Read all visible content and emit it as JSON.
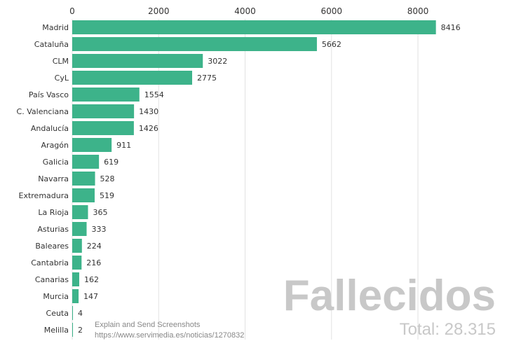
{
  "chart_data": {
    "type": "bar",
    "orientation": "horizontal",
    "title": "Fallecidos",
    "subtitle": "Total: 28.315",
    "categories": [
      "Madrid",
      "Cataluña",
      "CLM",
      "CyL",
      "País Vasco",
      "C. Valenciana",
      "Andalucía",
      "Aragón",
      "Galicia",
      "Navarra",
      "Extremadura",
      "La Rioja",
      "Asturias",
      "Baleares",
      "Cantabria",
      "Canarias",
      "Murcia",
      "Ceuta",
      "Melilla"
    ],
    "values": [
      8416,
      5662,
      3022,
      2775,
      1554,
      1430,
      1426,
      911,
      619,
      528,
      519,
      365,
      333,
      224,
      216,
      162,
      147,
      4,
      2
    ],
    "xlim": [
      0,
      8800
    ],
    "xticks": [
      "0",
      "2000",
      "4000",
      "6000",
      "8000"
    ],
    "grid": true,
    "bar_color": "#3db38a"
  },
  "watermark": {
    "line1": "Explain and Send Screenshots",
    "line2": "https://www.servimedia.es/noticias/1270832"
  }
}
